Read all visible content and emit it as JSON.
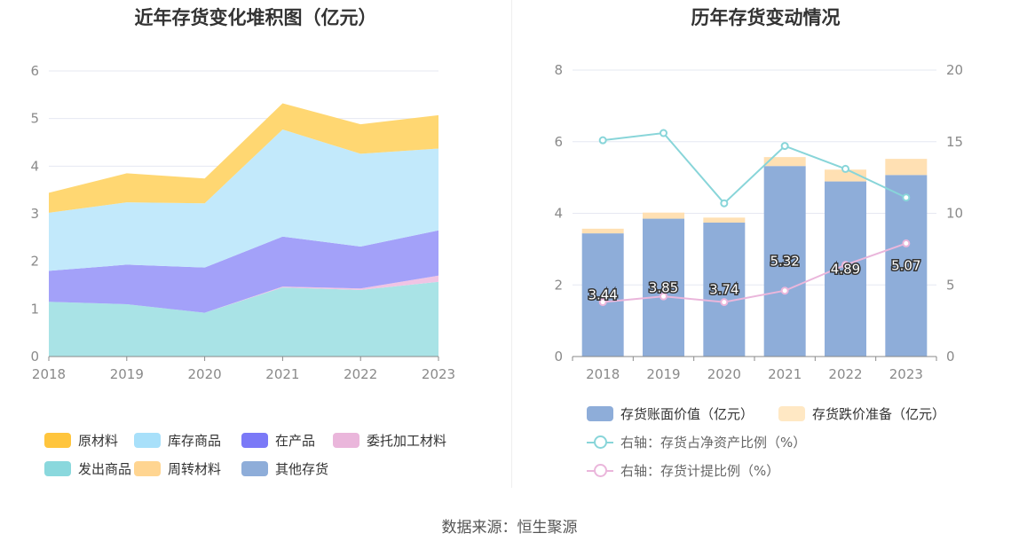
{
  "left": {
    "title": "近年存货变化堆积图（亿元）",
    "legend": [
      {
        "name": "原材料",
        "color": "#ffc53d"
      },
      {
        "name": "库存商品",
        "color": "#a8e0fa"
      },
      {
        "name": "在产品",
        "color": "#7b79f7"
      },
      {
        "name": "委托加工材料",
        "color": "#eab6db"
      },
      {
        "name": "发出商品",
        "color": "#8ad8dd"
      },
      {
        "name": "周转材料",
        "color": "#ffd591"
      },
      {
        "name": "其他存货",
        "color": "#8eadd9"
      }
    ]
  },
  "right": {
    "title": "历年存货变动情况",
    "legend": [
      {
        "name": "存货账面价值（亿元）",
        "color": "#8eadd9",
        "kind": "bar"
      },
      {
        "name": "存货跌价准备（亿元）",
        "color": "#ffe8c4",
        "kind": "bar"
      },
      {
        "name": "右轴：存货占净资产比例（%）",
        "color": "#88d5d9",
        "kind": "line"
      },
      {
        "name": "右轴：存货计提比例（%）",
        "color": "#eab6db",
        "kind": "line"
      }
    ]
  },
  "source": "数据来源：恒生聚源",
  "chart_data": [
    {
      "type": "area",
      "stacked": true,
      "title": "近年存货变化堆积图（亿元）",
      "x": [
        "2018",
        "2019",
        "2020",
        "2021",
        "2022",
        "2023"
      ],
      "ylim": [
        0,
        6
      ],
      "yticks": [
        0,
        1,
        2,
        3,
        4,
        5,
        6
      ],
      "grid": true,
      "legend_position": "bottom",
      "series": [
        {
          "name": "发出商品",
          "color": "#a9e3e6",
          "values": [
            1.15,
            1.1,
            0.92,
            1.45,
            1.4,
            1.57
          ]
        },
        {
          "name": "委托加工材料",
          "color": "#f0c4e4",
          "values": [
            0.0,
            0.0,
            0.0,
            0.02,
            0.03,
            0.13
          ]
        },
        {
          "name": "在产品",
          "color": "#a3a1f9",
          "values": [
            0.65,
            0.83,
            0.95,
            1.05,
            0.88,
            0.95
          ]
        },
        {
          "name": "库存商品",
          "color": "#c2e9fb",
          "values": [
            1.22,
            1.31,
            1.35,
            2.25,
            1.95,
            1.72
          ]
        },
        {
          "name": "原材料",
          "color": "#ffd772",
          "values": [
            0.42,
            0.61,
            0.52,
            0.55,
            0.62,
            0.7
          ]
        }
      ]
    },
    {
      "type": "bar",
      "stacked": true,
      "title": "历年存货变动情况",
      "categories": [
        "2018",
        "2019",
        "2020",
        "2021",
        "2022",
        "2023"
      ],
      "ylim": [
        0,
        8
      ],
      "yticks": [
        0,
        2,
        4,
        6,
        8
      ],
      "y2lim": [
        0,
        20
      ],
      "y2ticks": [
        0,
        5,
        10,
        15,
        20
      ],
      "grid": true,
      "legend_position": "bottom",
      "series": [
        {
          "name": "存货账面价值（亿元）",
          "color": "#8eadd9",
          "axis": "left",
          "values": [
            3.44,
            3.85,
            3.74,
            5.32,
            4.89,
            5.07
          ],
          "labels": [
            "3.44",
            "3.85",
            "3.74",
            "5.32",
            "4.89",
            "5.07"
          ]
        },
        {
          "name": "存货跌价准备（亿元）",
          "color": "#ffe0b3",
          "axis": "left",
          "values": [
            0.13,
            0.17,
            0.14,
            0.25,
            0.33,
            0.45
          ]
        }
      ],
      "line_series": [
        {
          "name": "右轴：存货占净资产比例（%）",
          "color": "#88d5d9",
          "axis": "right",
          "values": [
            15.1,
            15.6,
            10.7,
            14.7,
            13.1,
            11.1
          ]
        },
        {
          "name": "右轴：存货计提比例（%）",
          "color": "#eab6db",
          "axis": "right",
          "values": [
            3.8,
            4.2,
            3.8,
            4.6,
            6.4,
            7.9
          ]
        }
      ]
    }
  ]
}
